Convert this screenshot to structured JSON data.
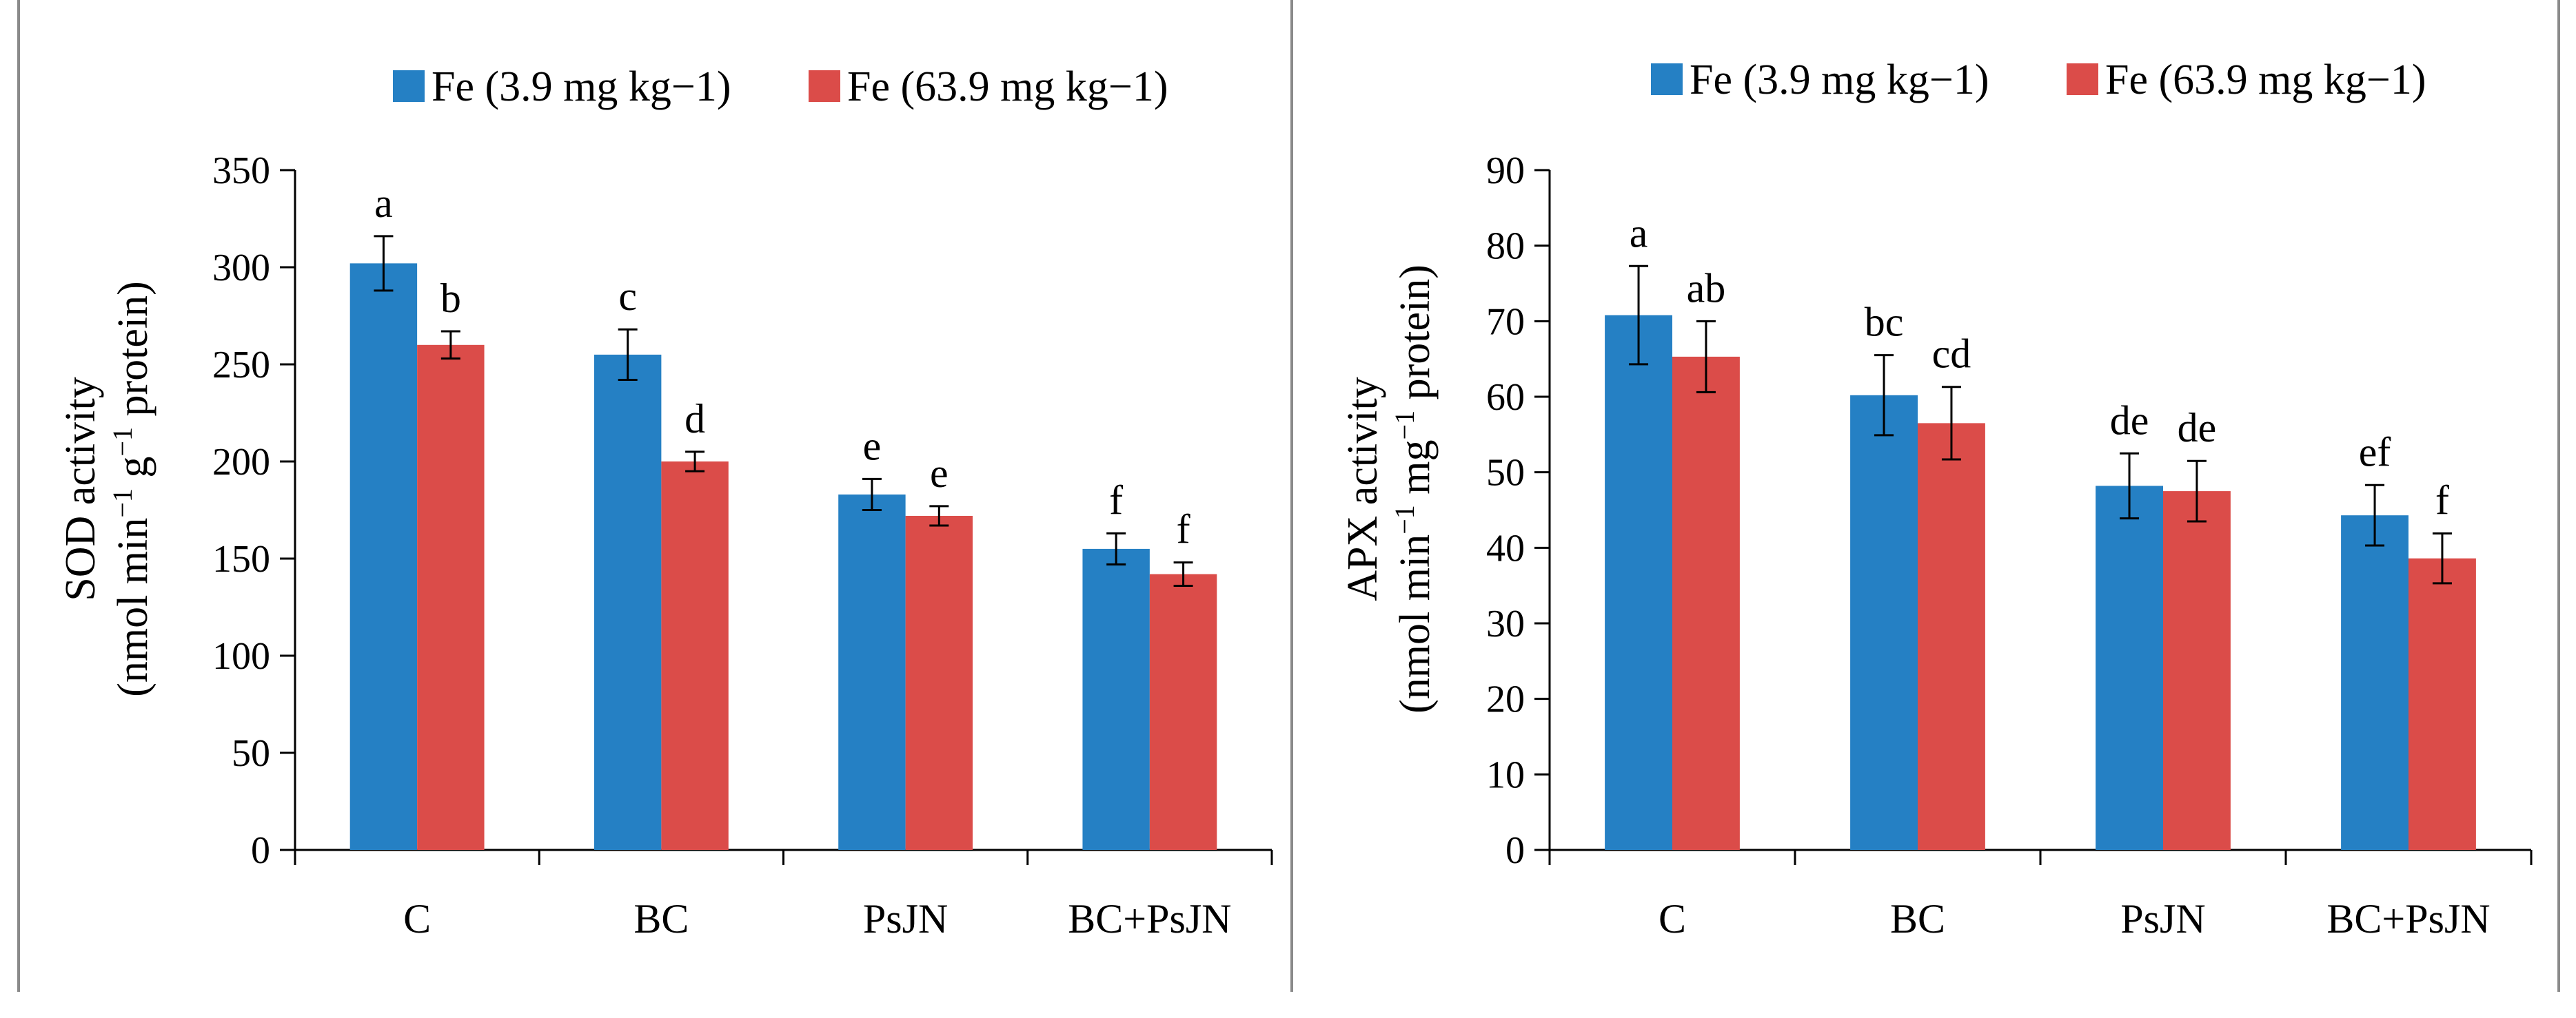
{
  "colors": {
    "series1": "#2580C4",
    "series2": "#DB4C49",
    "frame": "#8a8a8a"
  },
  "chart_data": [
    {
      "type": "bar",
      "title": "",
      "xlabel": "",
      "ylabel_line1": "SOD activity",
      "ylabel_line2_parts": [
        "(nmol min",
        "−1",
        " g",
        "−1",
        " protein)"
      ],
      "ylim": [
        0,
        350
      ],
      "yticks": [
        0,
        50,
        100,
        150,
        200,
        250,
        300,
        350
      ],
      "ytick_labels": [
        "0",
        "50",
        "100",
        "150",
        "200",
        "250",
        "300",
        "350"
      ],
      "categories": [
        "C",
        "BC",
        "PsJN",
        "BC+PsJN"
      ],
      "legend": [
        "Fe (3.9 mg kg−1)",
        "Fe (63.9 mg kg−1)"
      ],
      "series": [
        {
          "name": "Fe (3.9 mg kg−1)",
          "values": [
            302,
            255,
            183,
            155
          ],
          "errors": [
            14,
            13,
            8,
            8
          ],
          "letters": [
            "a",
            "c",
            "e",
            "f"
          ]
        },
        {
          "name": "Fe (63.9 mg kg−1)",
          "values": [
            260,
            200,
            172,
            142
          ],
          "errors": [
            7,
            5,
            5,
            6
          ],
          "letters": [
            "b",
            "d",
            "e",
            "f"
          ]
        }
      ]
    },
    {
      "type": "bar",
      "title": "",
      "xlabel": "",
      "ylabel_line1": "APX activity",
      "ylabel_line2_parts": [
        "(nmol min",
        "−1",
        " mg",
        "−1",
        " protein)"
      ],
      "ylim": [
        0,
        90
      ],
      "yticks": [
        0,
        10,
        20,
        30,
        40,
        50,
        60,
        70,
        80,
        90
      ],
      "ytick_labels": [
        "0",
        "10",
        "20",
        "30",
        "40",
        "50",
        "60",
        "70",
        "80",
        "90"
      ],
      "categories": [
        "C",
        "BC",
        "PsJN",
        "BC+PsJN"
      ],
      "legend": [
        "Fe (3.9 mg kg−1)",
        "Fe (63.9 mg kg−1)"
      ],
      "series": [
        {
          "name": "Fe (3.9 mg kg−1)",
          "values": [
            70.8,
            60.2,
            48.2,
            44.3
          ],
          "errors": [
            6.5,
            5.3,
            4.3,
            4.0
          ],
          "letters": [
            "a",
            "bc",
            "de",
            "ef"
          ]
        },
        {
          "name": "Fe (63.9 mg kg−1)",
          "values": [
            65.3,
            56.5,
            47.5,
            38.6
          ],
          "errors": [
            4.7,
            4.8,
            4.0,
            3.3
          ],
          "letters": [
            "ab",
            "cd",
            "de",
            "f"
          ]
        }
      ]
    }
  ]
}
